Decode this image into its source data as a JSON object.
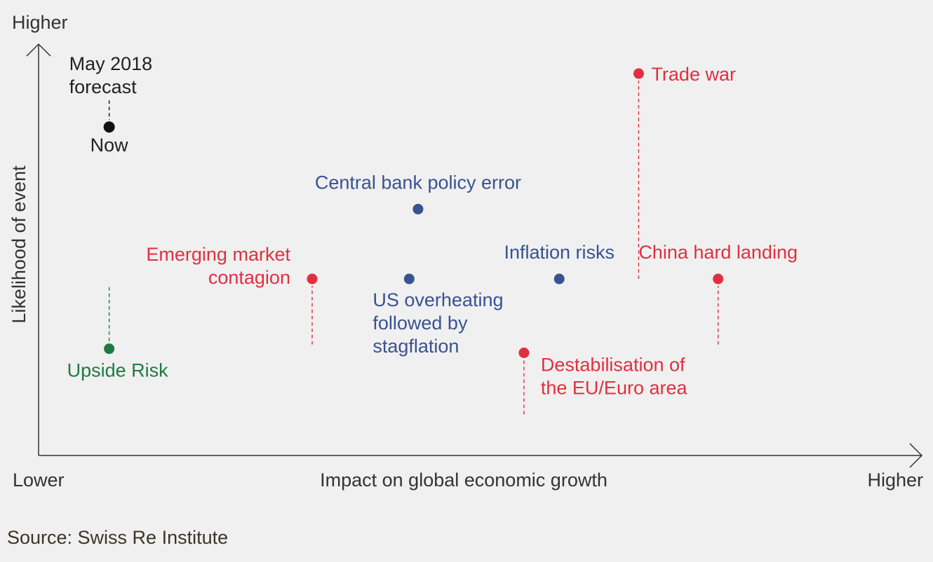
{
  "chart_data": {
    "type": "scatter",
    "title": "",
    "xlabel": "Impact on global economic growth",
    "ylabel": "Likelihood of event",
    "x_axis_low_label": "Lower",
    "x_axis_high_label": "Higher",
    "y_axis_high_label": "Higher",
    "xlim": [
      0,
      100
    ],
    "ylim": [
      0,
      100
    ],
    "grid": false,
    "colors": {
      "forecast": "#111111",
      "upside": "#1e7a45",
      "downside_red": "#e03040",
      "downside_blue": "#3a5291",
      "axis": "#333333",
      "text": "#333333"
    },
    "legend_items": [
      {
        "name": "May 2018 forecast",
        "lines": [
          "May 2018",
          "forecast"
        ],
        "x": 8,
        "y": 80,
        "color": "forecast"
      },
      {
        "name": "Now",
        "lines": [
          "Now"
        ],
        "x": 8,
        "y": 80,
        "color": "forecast"
      }
    ],
    "series": [
      {
        "name": "Upside Risk",
        "lines": [
          "Upside Risk"
        ],
        "x": 8,
        "y": 26,
        "prev_y": 41,
        "color": "upside",
        "label_pos": "below"
      },
      {
        "name": "Emerging market contagion",
        "lines": [
          "Emerging market",
          "contagion"
        ],
        "x": 31,
        "y": 43,
        "prev_y": 27,
        "color": "downside_red",
        "label_pos": "left"
      },
      {
        "name": "Central bank policy error",
        "lines": [
          "Central bank policy error"
        ],
        "x": 43,
        "y": 60,
        "prev_y": null,
        "color": "downside_blue",
        "label_pos": "above"
      },
      {
        "name": "US overheating followed by stagflation",
        "lines": [
          "US overheating",
          "followed by",
          "stagflation"
        ],
        "x": 42,
        "y": 43,
        "prev_y": null,
        "color": "downside_blue",
        "label_pos": "below"
      },
      {
        "name": "Inflation risks",
        "lines": [
          "Inflation risks"
        ],
        "x": 59,
        "y": 43,
        "prev_y": null,
        "color": "downside_blue",
        "label_pos": "above"
      },
      {
        "name": "Destabilisation of the EU/Euro area",
        "lines": [
          "Destabilisation of",
          "the EU/Euro area"
        ],
        "x": 55,
        "y": 25,
        "prev_y": 10,
        "color": "downside_red",
        "label_pos": "below-right"
      },
      {
        "name": "Trade war",
        "lines": [
          "Trade war"
        ],
        "x": 68,
        "y": 93,
        "prev_y": 43,
        "color": "downside_red",
        "label_pos": "right"
      },
      {
        "name": "China hard landing",
        "lines": [
          "China hard landing"
        ],
        "x": 77,
        "y": 43,
        "prev_y": 27,
        "color": "downside_red",
        "label_pos": "above"
      }
    ]
  },
  "source": "Source: Swiss Re Institute"
}
